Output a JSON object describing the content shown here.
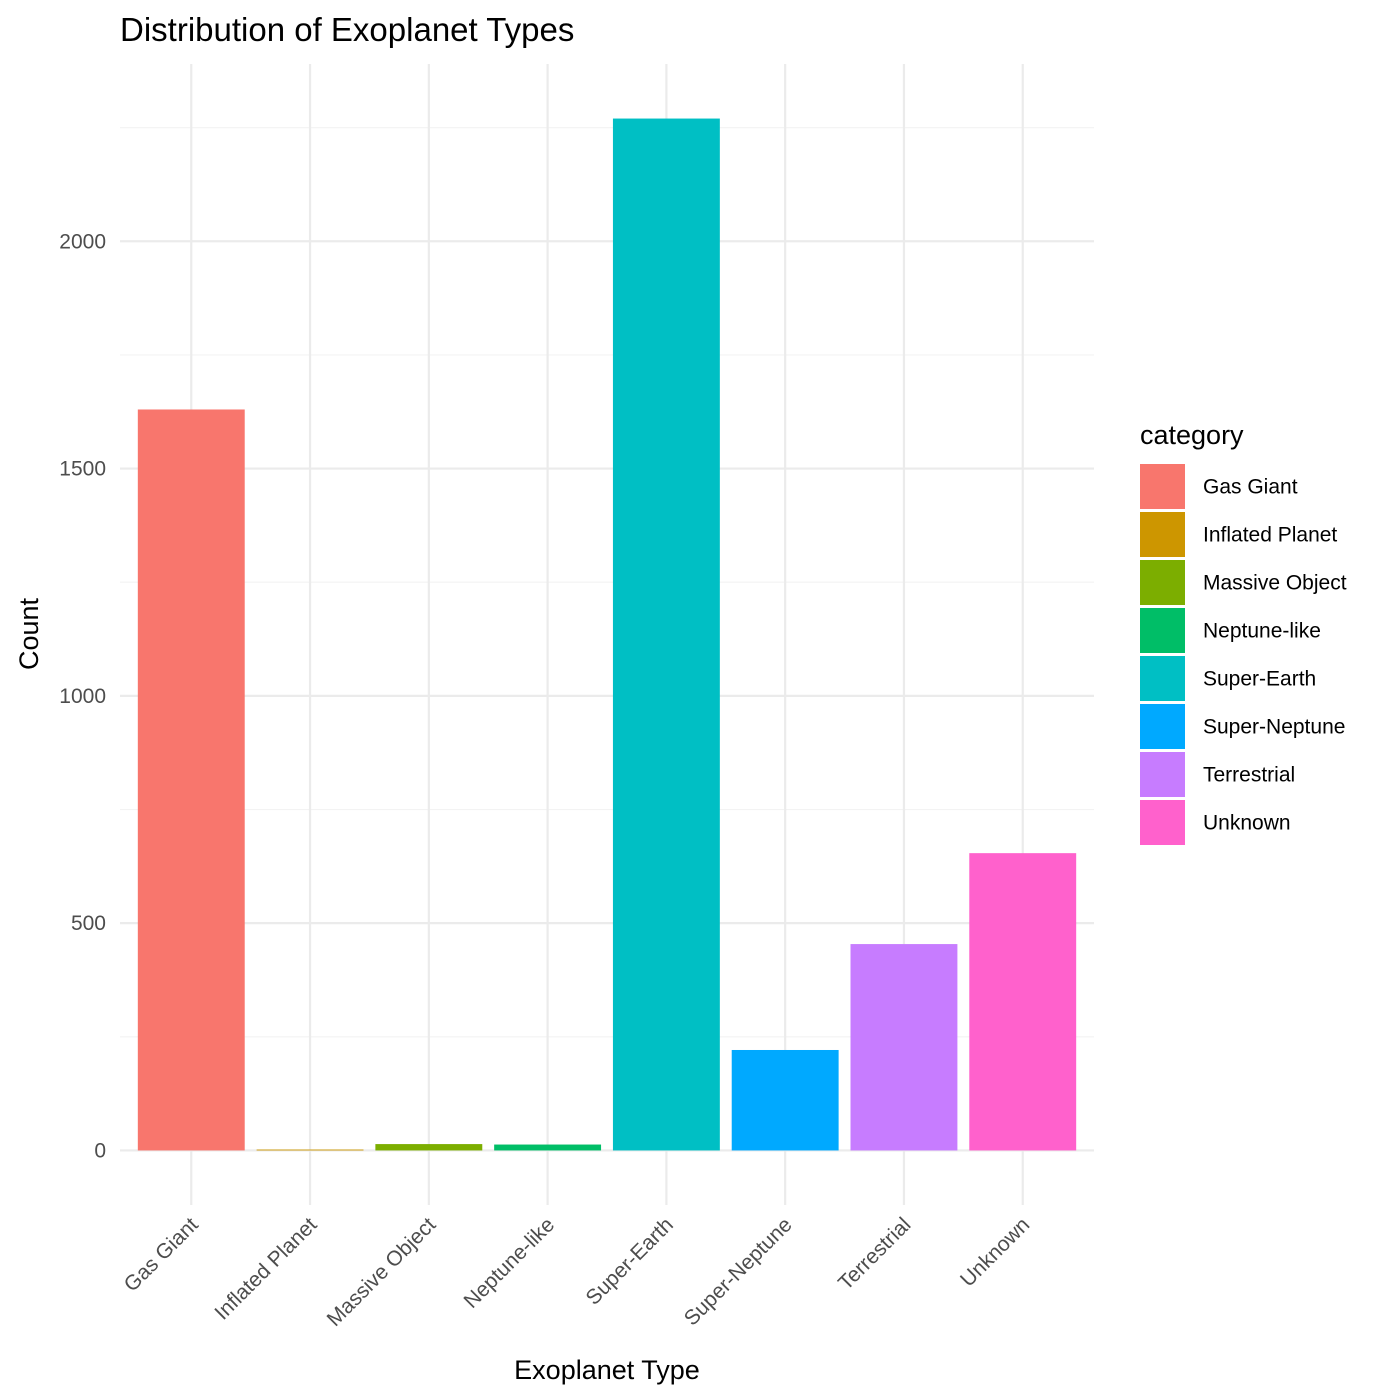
{
  "chart_data": {
    "type": "bar",
    "title": "Distribution of Exoplanet Types",
    "xlabel": "Exoplanet Type",
    "ylabel": "Count",
    "categories": [
      "Gas Giant",
      "Inflated Planet",
      "Massive Object",
      "Neptune-like",
      "Super-Earth",
      "Super-Neptune",
      "Terrestrial",
      "Unknown"
    ],
    "values": [
      1630,
      2,
      14,
      13,
      2270,
      221,
      454,
      654
    ],
    "colors": [
      "#F8766D",
      "#CD9600",
      "#7CAE00",
      "#00BE67",
      "#00BFC4",
      "#00A9FF",
      "#C77CFF",
      "#FF61CC"
    ],
    "ylim": [
      -120,
      2390
    ],
    "yticks": [
      0,
      500,
      1000,
      1500,
      2000
    ],
    "grid": true,
    "legend": {
      "title": "category",
      "position": "right",
      "entries": [
        "Gas Giant",
        "Inflated Planet",
        "Massive Object",
        "Neptune-like",
        "Super-Earth",
        "Super-Neptune",
        "Terrestrial",
        "Unknown"
      ]
    }
  }
}
